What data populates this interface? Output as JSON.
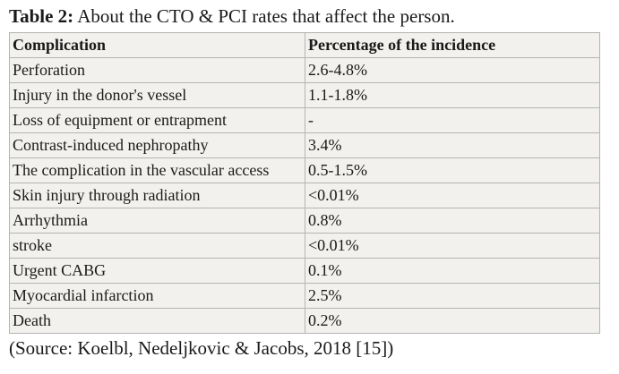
{
  "caption": {
    "label": "Table 2:",
    "text": " About the CTO & PCI rates that affect the person."
  },
  "table": {
    "headers": [
      "Complication",
      "Percentage of the incidence"
    ],
    "rows": [
      [
        "Perforation",
        "2.6-4.8%"
      ],
      [
        "Injury in the donor's vessel",
        "1.1-1.8%"
      ],
      [
        "Loss of equipment or entrapment",
        "-"
      ],
      [
        "Contrast-induced nephropathy",
        "3.4%"
      ],
      [
        "The complication in the vascular access",
        "0.5-1.5%"
      ],
      [
        "Skin injury through radiation",
        "<0.01%"
      ],
      [
        "Arrhythmia",
        "0.8%"
      ],
      [
        "stroke",
        "<0.01%"
      ],
      [
        "Urgent CABG",
        "0.1%"
      ],
      [
        "Myocardial infarction",
        "2.5%"
      ],
      [
        "Death",
        "0.2%"
      ]
    ]
  },
  "source": "(Source: Koelbl, Nedeljkovic & Jacobs, 2018 [15])"
}
